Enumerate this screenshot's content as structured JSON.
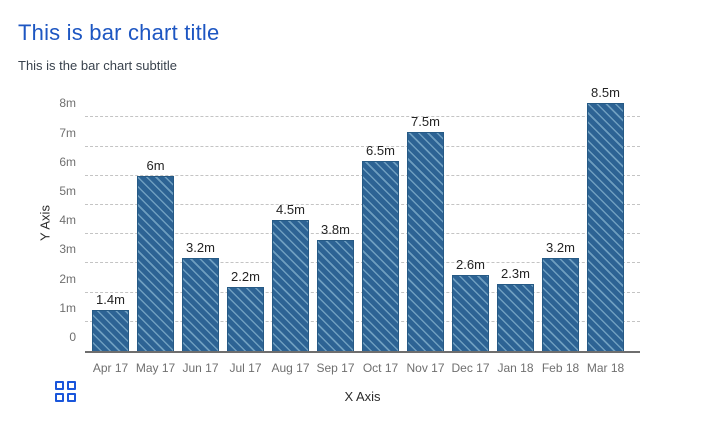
{
  "header": {
    "title": "This is bar chart title",
    "subtitle": "This is the bar chart subtitle"
  },
  "chart_data": {
    "type": "bar",
    "title": "This is bar chart title",
    "subtitle": "This is the bar chart subtitle",
    "categories": [
      "Apr 17",
      "May 17",
      "Jun 17",
      "Jul 17",
      "Aug 17",
      "Sep 17",
      "Oct 17",
      "Nov 17",
      "Dec 17",
      "Jan 18",
      "Feb 18",
      "Mar 18"
    ],
    "values": [
      1.4,
      6,
      3.2,
      2.2,
      4.5,
      3.8,
      6.5,
      7.5,
      2.6,
      2.3,
      3.2,
      8.5
    ],
    "value_labels": [
      "1.4m",
      "6m",
      "3.2m",
      "2.2m",
      "4.5m",
      "3.8m",
      "6.5m",
      "7.5m",
      "2.6m",
      "2.3m",
      "3.2m",
      "8.5m"
    ],
    "xlabel": "X Axis",
    "ylabel": "Y Axis",
    "y_ticks": [
      "0",
      "1m",
      "2m",
      "3m",
      "4m",
      "5m",
      "6m",
      "7m",
      "8m"
    ],
    "y_tick_values": [
      0,
      1,
      2,
      3,
      4,
      5,
      6,
      7,
      8
    ],
    "ylim": [
      0,
      8.75
    ],
    "grid": "horizontal-dashed",
    "legend": "none",
    "bar_style": "diagonal-hatch"
  },
  "colors": {
    "title": "#1d56c2",
    "subtitle": "#39424d",
    "bar_fill": "#2d6394",
    "bar_hatch": "#7aa8c7",
    "gridline": "#c4c4c4",
    "axis_line": "#6e6e6e",
    "tick_label": "#6f6f6f",
    "axis_title": "#2c2c2c",
    "grid_icon": "#1a56db"
  },
  "footer": {
    "grid_icon": "apps-grid-icon"
  }
}
